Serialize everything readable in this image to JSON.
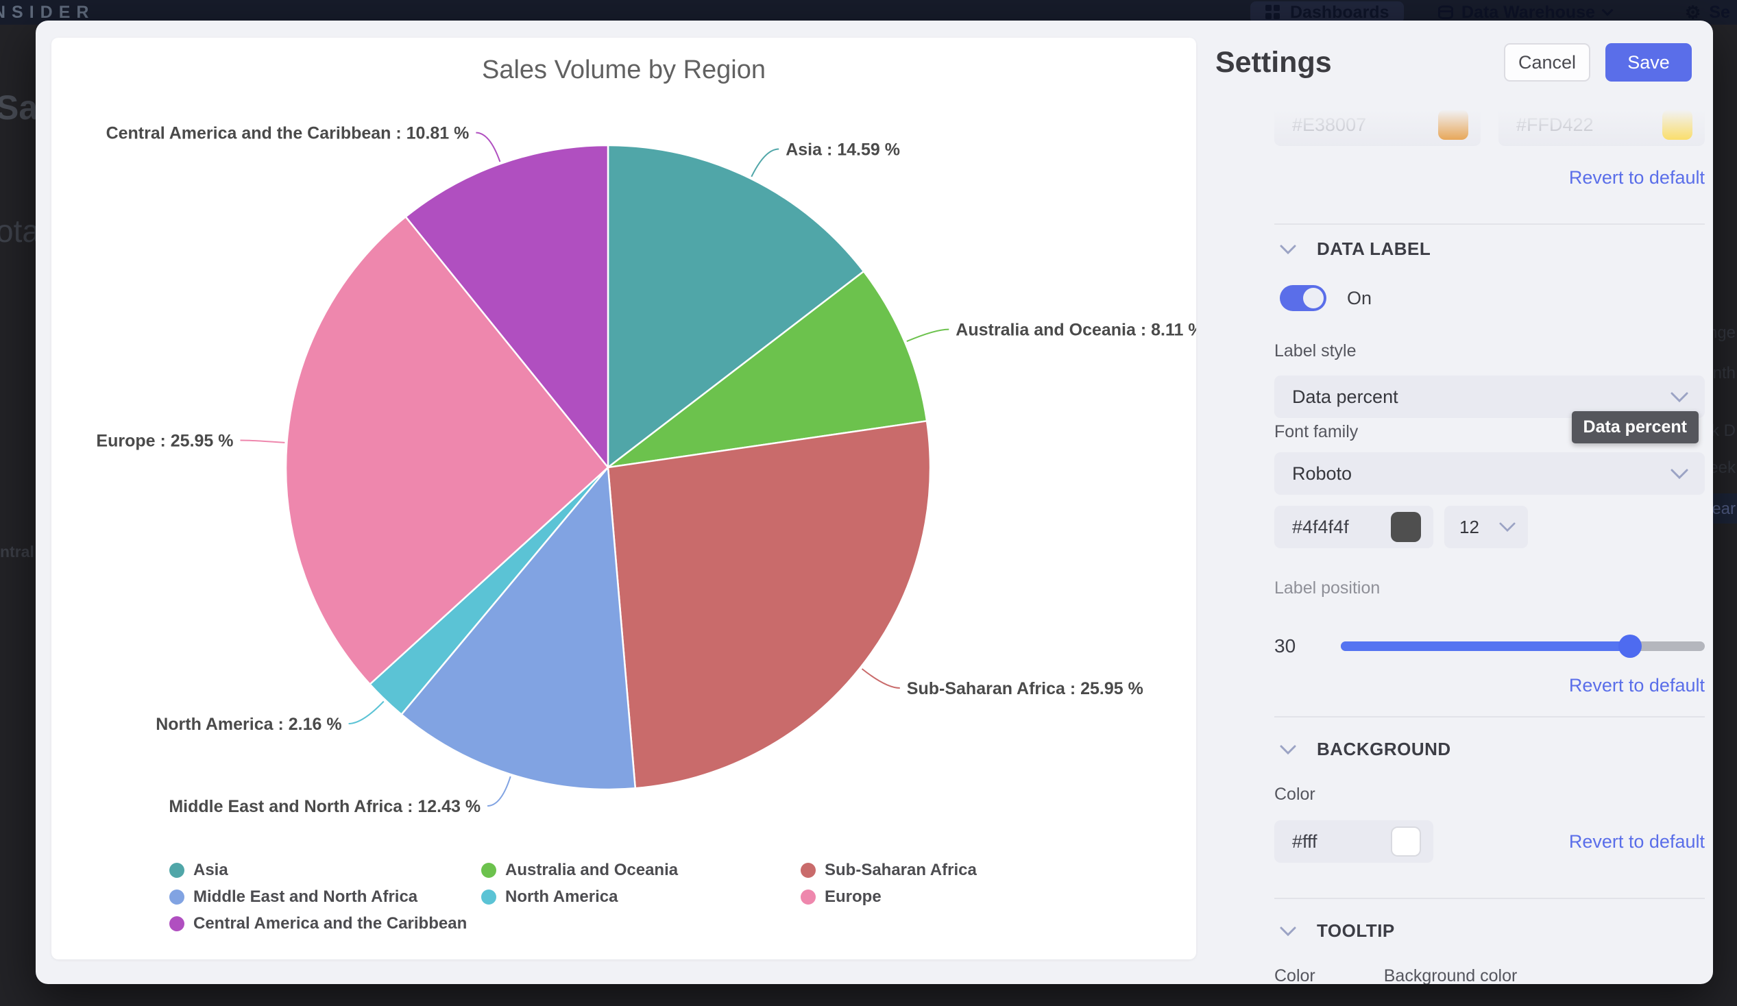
{
  "chart_data": {
    "type": "pie",
    "title": "Sales Volume by Region",
    "unit": "%",
    "label_format": "{name} : {value} %",
    "legend_position": "bottom",
    "slices": [
      {
        "name": "Asia",
        "value": 14.59,
        "color": "#50a6a8"
      },
      {
        "name": "Australia and Oceania",
        "value": 8.11,
        "color": "#6cc24d"
      },
      {
        "name": "Sub-Saharan Africa",
        "value": 25.95,
        "color": "#c96b6b"
      },
      {
        "name": "Middle East and North Africa",
        "value": 12.43,
        "color": "#81a3e2"
      },
      {
        "name": "North America",
        "value": 2.16,
        "color": "#5bc3d5"
      },
      {
        "name": "Europe",
        "value": 25.95,
        "color": "#ee87ad"
      },
      {
        "name": "Central America and the Caribbean",
        "value": 10.81,
        "color": "#b04fc0"
      }
    ],
    "legend_rows": [
      [
        "Asia",
        "Australia and Oceania",
        "Sub-Saharan Africa"
      ],
      [
        "Middle East and North Africa",
        "North America",
        "Europe"
      ],
      [
        "Central America and the Caribbean"
      ]
    ]
  },
  "settings": {
    "title": "Settings",
    "cancel_label": "Cancel",
    "save_label": "Save",
    "accent_color": "#5a6ee9",
    "revert_label": "Revert to default",
    "scrolled_fields": [
      {
        "value": "#E38007"
      },
      {
        "value": "#FFD422"
      }
    ],
    "sections": {
      "data_label": {
        "heading": "DATA LABEL",
        "toggle_state": "On",
        "label_style": {
          "label": "Label style",
          "value": "Data percent"
        },
        "tooltip": "Data percent",
        "font_family": {
          "label": "Font family",
          "value": "Roboto"
        },
        "font_color": "#4f4f4f",
        "font_size": "12",
        "label_position": {
          "label": "Label position",
          "value": "30",
          "percent": 79.5
        }
      },
      "background": {
        "heading": "BACKGROUND",
        "color_label": "Color",
        "color_value": "#fff"
      },
      "tooltip": {
        "heading": "TOOLTIP",
        "color_label": "Color",
        "background_color_label": "Background color"
      }
    }
  },
  "backdrop": {
    "brand_fragment": "NSIDER",
    "topbar": {
      "dashboards_label": "Dashboards",
      "data_warehouse_label": "Data Warehouse",
      "settings_fragment": "Se"
    },
    "left_fragments": [
      "Sal",
      "ota",
      "ntral"
    ],
    "right_fragments": [
      "nge",
      "nth",
      "k D",
      "eek",
      "ear"
    ]
  }
}
